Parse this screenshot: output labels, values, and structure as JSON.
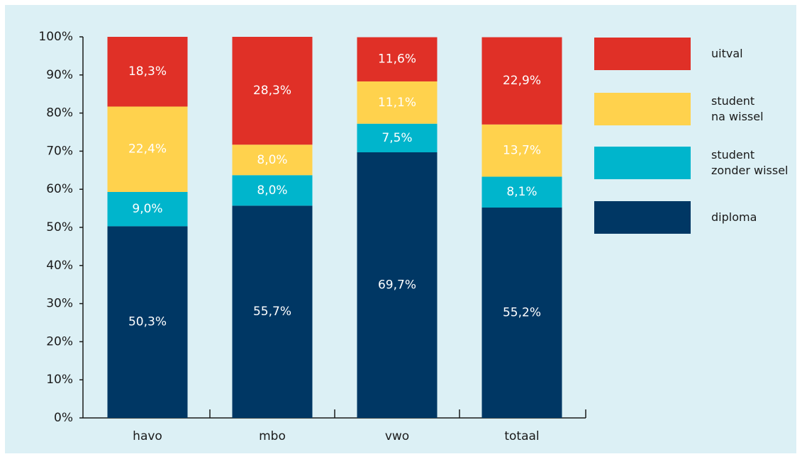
{
  "chart_data": {
    "type": "stacked-bar",
    "categories": [
      "havo",
      "mbo",
      "vwo",
      "totaal"
    ],
    "series": [
      {
        "name": "diploma",
        "color": "#003764",
        "values": [
          50.3,
          55.7,
          69.7,
          55.2
        ],
        "value_labels": [
          "50,3%",
          "55,7%",
          "69,7%",
          "55,2%"
        ]
      },
      {
        "name": "student\nzonder wissel",
        "color": "#00b5cc",
        "values": [
          9.0,
          8.0,
          7.5,
          8.1
        ],
        "value_labels": [
          "9,0%",
          "8,0%",
          "7,5%",
          "8,1%"
        ]
      },
      {
        "name": "student\nna wissel",
        "color": "#ffd24d",
        "values": [
          22.4,
          8.0,
          11.1,
          13.7
        ],
        "value_labels": [
          "22,4%",
          "8,0%",
          "11,1%",
          "13,7%"
        ]
      },
      {
        "name": "uitval",
        "color": "#e03027",
        "values": [
          18.3,
          28.3,
          11.6,
          22.9
        ],
        "value_labels": [
          "18,3%",
          "28,3%",
          "11,6%",
          "22,9%"
        ]
      }
    ],
    "ylim": [
      0,
      100
    ],
    "yticks": [
      {
        "value": 0,
        "label": "0%"
      },
      {
        "value": 10,
        "label": "10%"
      },
      {
        "value": 20,
        "label": "20%"
      },
      {
        "value": 30,
        "label": "30%"
      },
      {
        "value": 40,
        "label": "40%"
      },
      {
        "value": 50,
        "label": "50%"
      },
      {
        "value": 60,
        "label": "60%"
      },
      {
        "value": 70,
        "label": "70%"
      },
      {
        "value": 80,
        "label": "80%"
      },
      {
        "value": 90,
        "label": "90%"
      },
      {
        "value": 100,
        "label": "100%"
      }
    ],
    "legend": "right"
  }
}
